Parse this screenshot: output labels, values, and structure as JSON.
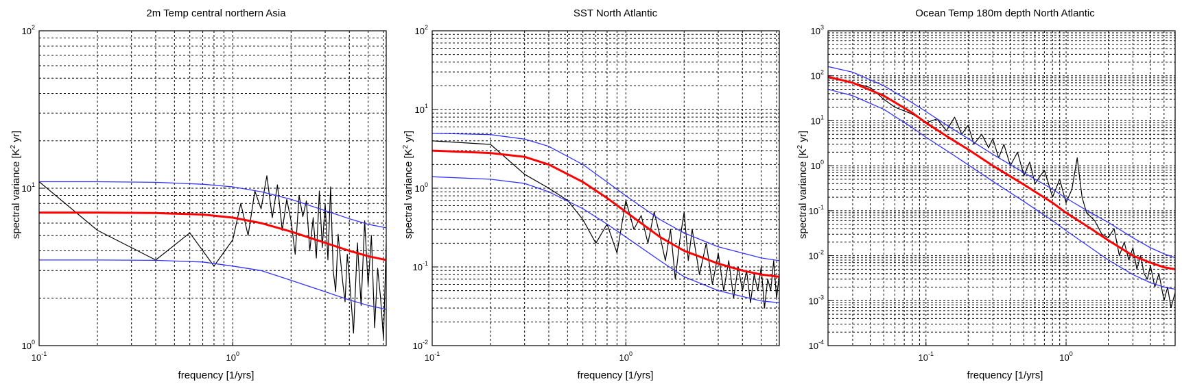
{
  "chart_data": [
    {
      "type": "line",
      "title": "2m Temp central northern Asia",
      "xlabel": "frequency [1/yrs]",
      "ylabel_prefix": "spectral variance [K",
      "ylabel_sup": "2",
      "ylabel_suffix": " yr]",
      "xscale": "log",
      "yscale": "log",
      "xlim": [
        0.1,
        6.2
      ],
      "ylim": [
        1,
        100
      ],
      "grid": true,
      "xticks": [
        {
          "base": "10",
          "exp": "-1",
          "value": 0.1
        },
        {
          "base": "10",
          "exp": "0",
          "value": 1
        }
      ],
      "yticks": [
        {
          "base": "10",
          "exp": "0",
          "value": 1
        },
        {
          "base": "10",
          "exp": "1",
          "value": 10
        },
        {
          "base": "10",
          "exp": "2",
          "value": 100
        }
      ],
      "series": [
        {
          "role": "spectrum",
          "color": "#000000",
          "x": [
            0.1,
            0.2,
            0.4,
            0.6,
            0.8,
            1.0,
            1.1,
            1.2,
            1.3,
            1.4,
            1.5,
            1.6,
            1.7,
            1.8,
            1.9,
            2.0,
            2.1,
            2.2,
            2.3,
            2.4,
            2.5,
            2.6,
            2.7,
            2.8,
            2.9,
            3.0,
            3.1,
            3.2,
            3.3,
            3.4,
            3.5,
            3.6,
            3.7,
            3.8,
            3.9,
            4.0,
            4.2,
            4.4,
            4.6,
            4.8,
            5.0,
            5.2,
            5.4,
            5.6,
            5.8,
            6.0,
            6.2
          ],
          "y": [
            11,
            5.4,
            3.5,
            5.2,
            3.2,
            4.7,
            8.0,
            5.0,
            9.6,
            7.4,
            12.0,
            6.5,
            10.5,
            5.4,
            8.5,
            6.2,
            3.8,
            9.0,
            6.6,
            8.3,
            4.0,
            6.5,
            3.6,
            9.6,
            4.2,
            8.0,
            3.5,
            10.2,
            3.0,
            2.2,
            5.1,
            3.5,
            2.5,
            1.9,
            3.8,
            2.7,
            1.2,
            4.5,
            1.8,
            6.2,
            2.4,
            5.0,
            1.3,
            3.1,
            2.0,
            1.1,
            4.5
          ]
        },
        {
          "role": "upper",
          "color": "#3333ff",
          "x": [
            0.1,
            0.2,
            0.4,
            0.7,
            1.0,
            1.4,
            2.0,
            3.0,
            4.0,
            5.0,
            6.2
          ],
          "y": [
            11.0,
            11.0,
            10.9,
            10.6,
            10.2,
            9.5,
            8.5,
            7.2,
            6.4,
            5.9,
            5.6
          ]
        },
        {
          "role": "mean",
          "color": "#ff0000",
          "x": [
            0.1,
            0.2,
            0.4,
            0.7,
            1.0,
            1.4,
            2.0,
            3.0,
            4.0,
            5.0,
            6.2
          ],
          "y": [
            7.0,
            7.0,
            6.95,
            6.8,
            6.5,
            6.0,
            5.3,
            4.5,
            4.0,
            3.7,
            3.5
          ]
        },
        {
          "role": "lower",
          "color": "#3333ff",
          "x": [
            0.1,
            0.2,
            0.4,
            0.7,
            1.0,
            1.4,
            2.0,
            3.0,
            4.0,
            5.0,
            6.2
          ],
          "y": [
            3.5,
            3.5,
            3.48,
            3.4,
            3.2,
            3.0,
            2.6,
            2.2,
            1.95,
            1.8,
            1.7
          ]
        }
      ]
    },
    {
      "type": "line",
      "title": "SST North Atlantic",
      "xlabel": "frequency [1/yrs]",
      "ylabel_prefix": "spectral variance [K",
      "ylabel_sup": "2",
      "ylabel_suffix": " yr]",
      "xscale": "log",
      "yscale": "log",
      "xlim": [
        0.1,
        6.2
      ],
      "ylim": [
        0.01,
        100
      ],
      "grid": true,
      "xticks": [
        {
          "base": "10",
          "exp": "-1",
          "value": 0.1
        },
        {
          "base": "10",
          "exp": "0",
          "value": 1
        }
      ],
      "yticks": [
        {
          "base": "10",
          "exp": "-2",
          "value": 0.01
        },
        {
          "base": "10",
          "exp": "-1",
          "value": 0.1
        },
        {
          "base": "10",
          "exp": "0",
          "value": 1
        },
        {
          "base": "10",
          "exp": "1",
          "value": 10
        },
        {
          "base": "10",
          "exp": "2",
          "value": 100
        }
      ],
      "series": [
        {
          "role": "spectrum",
          "color": "#000000",
          "x": [
            0.1,
            0.2,
            0.3,
            0.4,
            0.5,
            0.6,
            0.7,
            0.8,
            0.9,
            1.0,
            1.1,
            1.2,
            1.3,
            1.4,
            1.5,
            1.6,
            1.7,
            1.8,
            1.9,
            2.0,
            2.1,
            2.2,
            2.4,
            2.6,
            2.8,
            3.0,
            3.2,
            3.4,
            3.6,
            3.8,
            4.0,
            4.2,
            4.4,
            4.6,
            4.8,
            5.0,
            5.2,
            5.4,
            5.6,
            5.8,
            6.0,
            6.2
          ],
          "y": [
            4.0,
            3.6,
            1.5,
            1.0,
            0.7,
            0.4,
            0.2,
            0.35,
            0.15,
            0.7,
            0.3,
            0.45,
            0.2,
            0.5,
            0.25,
            0.12,
            0.3,
            0.07,
            0.22,
            0.5,
            0.12,
            0.3,
            0.08,
            0.2,
            0.06,
            0.15,
            0.05,
            0.12,
            0.04,
            0.1,
            0.05,
            0.09,
            0.035,
            0.08,
            0.05,
            0.1,
            0.03,
            0.07,
            0.05,
            0.12,
            0.04,
            0.08
          ]
        },
        {
          "role": "upper",
          "color": "#3333ff",
          "x": [
            0.1,
            0.2,
            0.3,
            0.4,
            0.6,
            0.8,
            1.0,
            1.5,
            2.0,
            3.0,
            4.0,
            5.0,
            6.2
          ],
          "y": [
            5.0,
            4.8,
            4.2,
            3.4,
            2.0,
            1.2,
            0.8,
            0.4,
            0.27,
            0.18,
            0.15,
            0.13,
            0.12
          ]
        },
        {
          "role": "mean",
          "color": "#ff0000",
          "x": [
            0.1,
            0.2,
            0.3,
            0.4,
            0.6,
            0.8,
            1.0,
            1.5,
            2.0,
            3.0,
            4.0,
            5.0,
            6.2
          ],
          "y": [
            3.0,
            2.8,
            2.5,
            2.0,
            1.2,
            0.75,
            0.5,
            0.24,
            0.16,
            0.11,
            0.09,
            0.08,
            0.075
          ]
        },
        {
          "role": "lower",
          "color": "#3333ff",
          "x": [
            0.1,
            0.2,
            0.3,
            0.4,
            0.6,
            0.8,
            1.0,
            1.5,
            2.0,
            3.0,
            4.0,
            5.0,
            6.2
          ],
          "y": [
            1.4,
            1.3,
            1.15,
            0.9,
            0.55,
            0.35,
            0.24,
            0.12,
            0.075,
            0.05,
            0.042,
            0.037,
            0.035
          ]
        }
      ]
    },
    {
      "type": "line",
      "title": "Ocean Temp 180m depth North Atlantic",
      "xlabel": "frequency [1/yrs]",
      "ylabel_prefix": "spectral variance [K",
      "ylabel_sup": "2",
      "ylabel_suffix": " yr]",
      "xscale": "log",
      "yscale": "log",
      "xlim": [
        0.02,
        6.0
      ],
      "ylim": [
        0.0001,
        1000
      ],
      "grid": true,
      "xticks": [
        {
          "base": "10",
          "exp": "-1",
          "value": 0.1
        },
        {
          "base": "10",
          "exp": "0",
          "value": 1
        }
      ],
      "yticks": [
        {
          "base": "10",
          "exp": "-4",
          "value": 0.0001
        },
        {
          "base": "10",
          "exp": "-3",
          "value": 0.001
        },
        {
          "base": "10",
          "exp": "-2",
          "value": 0.01
        },
        {
          "base": "10",
          "exp": "-1",
          "value": 0.1
        },
        {
          "base": "10",
          "exp": "0",
          "value": 1
        },
        {
          "base": "10",
          "exp": "1",
          "value": 10
        },
        {
          "base": "10",
          "exp": "2",
          "value": 100
        },
        {
          "base": "10",
          "exp": "3",
          "value": 1000
        }
      ],
      "series": [
        {
          "role": "spectrum",
          "color": "#000000",
          "x": [
            0.02,
            0.03,
            0.04,
            0.05,
            0.06,
            0.08,
            0.1,
            0.12,
            0.14,
            0.16,
            0.18,
            0.2,
            0.22,
            0.25,
            0.28,
            0.3,
            0.33,
            0.36,
            0.4,
            0.45,
            0.5,
            0.55,
            0.6,
            0.7,
            0.8,
            0.9,
            1.0,
            1.1,
            1.2,
            1.3,
            1.4,
            1.6,
            1.8,
            2.0,
            2.2,
            2.4,
            2.6,
            2.8,
            3.0,
            3.2,
            3.4,
            3.6,
            3.8,
            4.0,
            4.3,
            4.6,
            5.0,
            5.3,
            5.6,
            6.0
          ],
          "y": [
            90,
            70,
            55,
            30,
            20,
            14,
            9,
            11,
            6,
            12,
            5,
            8,
            3,
            5,
            2.5,
            4,
            1.5,
            3,
            1,
            2,
            0.6,
            1.2,
            0.4,
            0.8,
            0.2,
            0.5,
            0.15,
            0.3,
            1.5,
            0.2,
            0.09,
            0.06,
            0.03,
            0.025,
            0.04,
            0.01,
            0.02,
            0.008,
            0.015,
            0.005,
            0.01,
            0.004,
            0.003,
            0.006,
            0.002,
            0.004,
            0.001,
            0.002,
            0.0007,
            0.0015
          ]
        },
        {
          "role": "upper",
          "color": "#3333ff",
          "x": [
            0.02,
            0.03,
            0.05,
            0.08,
            0.1,
            0.15,
            0.2,
            0.3,
            0.5,
            0.8,
            1.0,
            1.5,
            2.0,
            3.0,
            4.0,
            5.0,
            6.0
          ],
          "y": [
            160,
            120,
            60,
            25,
            16,
            7,
            4,
            1.8,
            0.7,
            0.3,
            0.19,
            0.09,
            0.055,
            0.025,
            0.015,
            0.011,
            0.009
          ]
        },
        {
          "role": "mean",
          "color": "#ff0000",
          "x": [
            0.02,
            0.03,
            0.05,
            0.08,
            0.1,
            0.15,
            0.2,
            0.3,
            0.5,
            0.8,
            1.0,
            1.5,
            2.0,
            3.0,
            4.0,
            5.0,
            6.0
          ],
          "y": [
            95,
            70,
            36,
            15,
            9,
            4,
            2.3,
            1.0,
            0.38,
            0.15,
            0.09,
            0.04,
            0.022,
            0.01,
            0.007,
            0.0055,
            0.005
          ]
        },
        {
          "role": "lower",
          "color": "#3333ff",
          "x": [
            0.02,
            0.03,
            0.05,
            0.08,
            0.1,
            0.15,
            0.2,
            0.3,
            0.5,
            0.8,
            1.0,
            1.5,
            2.0,
            3.0,
            4.0,
            5.0,
            6.0
          ],
          "y": [
            50,
            36,
            18,
            7,
            4.3,
            1.9,
            1.05,
            0.45,
            0.16,
            0.06,
            0.036,
            0.015,
            0.008,
            0.0038,
            0.0025,
            0.002,
            0.0018
          ]
        }
      ]
    }
  ]
}
